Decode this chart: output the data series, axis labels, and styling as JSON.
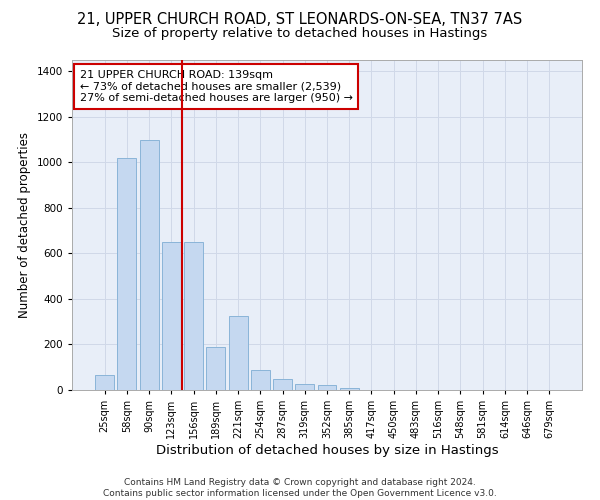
{
  "title_line1": "21, UPPER CHURCH ROAD, ST LEONARDS-ON-SEA, TN37 7AS",
  "title_line2": "Size of property relative to detached houses in Hastings",
  "xlabel": "Distribution of detached houses by size in Hastings",
  "ylabel": "Number of detached properties",
  "categories": [
    "25sqm",
    "58sqm",
    "90sqm",
    "123sqm",
    "156sqm",
    "189sqm",
    "221sqm",
    "254sqm",
    "287sqm",
    "319sqm",
    "352sqm",
    "385sqm",
    "417sqm",
    "450sqm",
    "483sqm",
    "516sqm",
    "548sqm",
    "581sqm",
    "614sqm",
    "646sqm",
    "679sqm"
  ],
  "values": [
    65,
    1020,
    1100,
    650,
    650,
    190,
    325,
    90,
    50,
    25,
    20,
    10,
    0,
    0,
    0,
    0,
    0,
    0,
    0,
    0,
    0
  ],
  "bar_color": "#c5d8f0",
  "bar_edge_color": "#8ab4d8",
  "vline_pos": 3.5,
  "vline_color": "#cc0000",
  "annotation_text": "21 UPPER CHURCH ROAD: 139sqm\n← 73% of detached houses are smaller (2,539)\n27% of semi-detached houses are larger (950) →",
  "annotation_box_facecolor": "#ffffff",
  "annotation_box_edgecolor": "#cc0000",
  "ylim_max": 1450,
  "yticks": [
    0,
    200,
    400,
    600,
    800,
    1000,
    1200,
    1400
  ],
  "grid_color": "#d0d8e8",
  "bg_color": "#e8eef8",
  "footer_line1": "Contains HM Land Registry data © Crown copyright and database right 2024.",
  "footer_line2": "Contains public sector information licensed under the Open Government Licence v3.0.",
  "title1_fontsize": 10.5,
  "title2_fontsize": 9.5,
  "tick_fontsize": 7,
  "ylabel_fontsize": 8.5,
  "xlabel_fontsize": 9.5,
  "annot_fontsize": 8,
  "footer_fontsize": 6.5
}
